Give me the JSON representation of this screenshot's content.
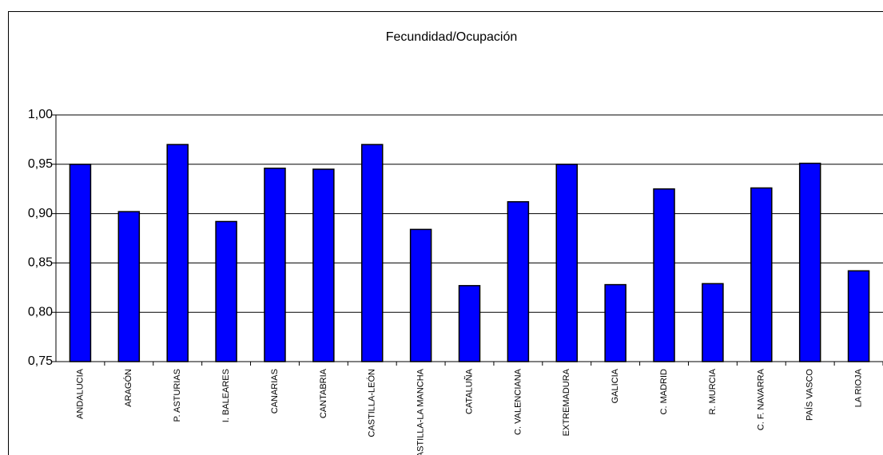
{
  "chart_data": {
    "type": "bar",
    "title": "Fecundidad/Ocupación",
    "categories": [
      "ANDALUCIA",
      "ARAGÓN",
      "P. ASTURIAS",
      "I. BALEARES",
      "CANARIAS",
      "CANTABRIA",
      "CASTILLA-LEÓN",
      "CASTILLA-LA MANCHA",
      "CATALUÑA",
      "C. VALENCIANA",
      "EXTREMADURA",
      "GALICIA",
      "C. MADRID",
      "R. MURCIA",
      "C. F. NAVARRA",
      "PAÍS VASCO",
      "LA RIOJA"
    ],
    "values": [
      0.95,
      0.902,
      0.97,
      0.892,
      0.946,
      0.945,
      0.97,
      0.884,
      0.827,
      0.912,
      0.95,
      0.828,
      0.925,
      0.829,
      0.926,
      0.951,
      0.842
    ],
    "color": "#0000ff",
    "ylim": [
      0.75,
      1.0
    ],
    "yticks": [
      {
        "value": 0.75,
        "label": "0,75"
      },
      {
        "value": 0.8,
        "label": "0,80"
      },
      {
        "value": 0.85,
        "label": "0,85"
      },
      {
        "value": 0.9,
        "label": "0,90"
      },
      {
        "value": 0.95,
        "label": "0,95"
      },
      {
        "value": 1.0,
        "label": "1,00"
      }
    ],
    "grid": true
  }
}
